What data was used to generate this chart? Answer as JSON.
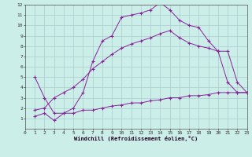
{
  "background_color": "#cceee8",
  "line_color": "#882299",
  "grid_color": "#aacccc",
  "xlabel": "Windchill (Refroidissement éolien,°C)",
  "xlim": [
    0,
    23
  ],
  "ylim": [
    0,
    12
  ],
  "xticks": [
    0,
    1,
    2,
    3,
    4,
    5,
    6,
    7,
    8,
    9,
    10,
    11,
    12,
    13,
    14,
    15,
    16,
    17,
    18,
    19,
    20,
    21,
    22,
    23
  ],
  "yticks": [
    1,
    2,
    3,
    4,
    5,
    6,
    7,
    8,
    9,
    10,
    11,
    12
  ],
  "series": [
    {
      "x": [
        1,
        2,
        3,
        4,
        5,
        6,
        7,
        8,
        9,
        10,
        11,
        12,
        13,
        14,
        15,
        16,
        17,
        18,
        19,
        20,
        21,
        22,
        23
      ],
      "y": [
        5.0,
        3.0,
        1.5,
        1.5,
        2.0,
        3.5,
        6.5,
        8.5,
        9.0,
        10.8,
        11.0,
        11.2,
        11.5,
        12.2,
        11.5,
        10.5,
        10.0,
        9.8,
        8.5,
        7.5,
        4.5,
        3.5,
        3.5
      ]
    },
    {
      "x": [
        1,
        2,
        3,
        4,
        5,
        6,
        7,
        8,
        9,
        10,
        11,
        12,
        13,
        14,
        15,
        16,
        17,
        18,
        19,
        20,
        21,
        22,
        23
      ],
      "y": [
        1.8,
        2.0,
        3.0,
        3.5,
        4.0,
        4.8,
        5.8,
        6.5,
        7.2,
        7.8,
        8.2,
        8.5,
        8.8,
        9.2,
        9.5,
        8.8,
        8.3,
        8.0,
        7.8,
        7.5,
        7.5,
        4.5,
        3.5
      ]
    },
    {
      "x": [
        1,
        2,
        3,
        4,
        5,
        6,
        7,
        8,
        9,
        10,
        11,
        12,
        13,
        14,
        15,
        16,
        17,
        18,
        19,
        20,
        21,
        22,
        23
      ],
      "y": [
        1.2,
        1.5,
        0.8,
        1.5,
        1.5,
        1.8,
        1.8,
        2.0,
        2.2,
        2.3,
        2.5,
        2.5,
        2.7,
        2.8,
        3.0,
        3.0,
        3.2,
        3.2,
        3.3,
        3.5,
        3.5,
        3.5,
        3.5
      ]
    }
  ]
}
